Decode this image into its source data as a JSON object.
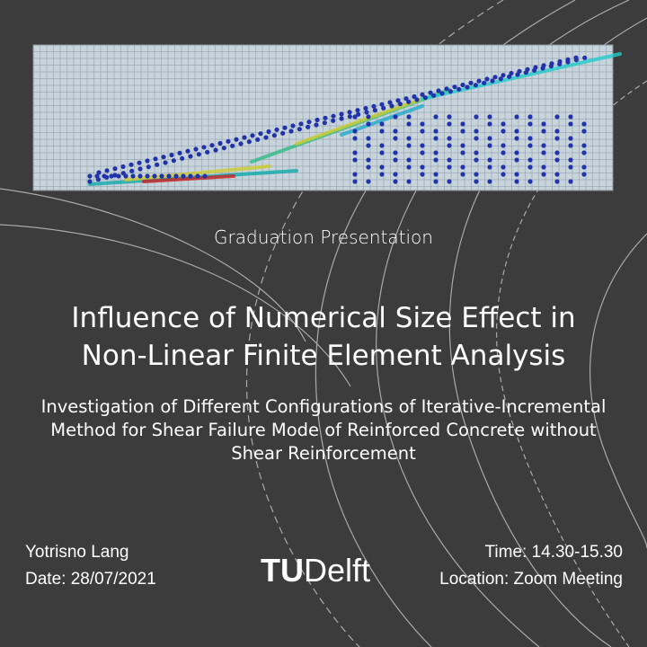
{
  "subtitle": "Graduation Presentation",
  "title": {
    "lines": [
      "Influence of Numerical Size Effect in",
      "Non-Linear Finite Element Analysis"
    ]
  },
  "description": {
    "lines": [
      "Investigation of Different Configurations of Iterative-Incremental",
      "Method for Shear Failure Mode of Reinforced Concrete without",
      "Shear Reinforcement"
    ]
  },
  "author": "Yotrisno Lang",
  "date": "Date: 28/07/2021",
  "time": "Time: 14.30-15.30",
  "location": "Location: Zoom Meeting",
  "logo": {
    "prefix": "TU",
    "name": "Delft"
  }
}
